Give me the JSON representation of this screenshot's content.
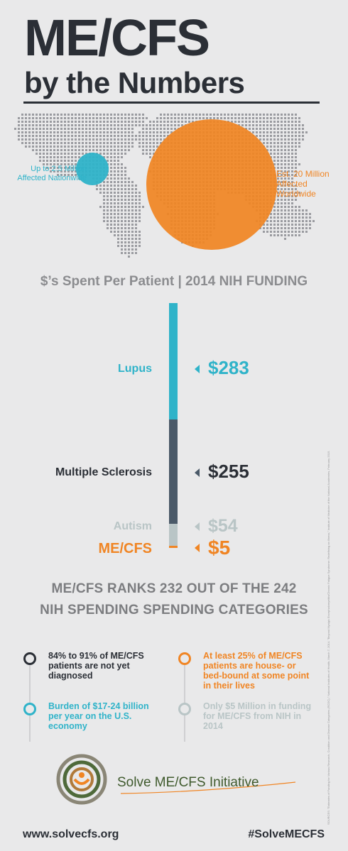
{
  "header": {
    "title": "ME/CFS",
    "subtitle": "by the Numbers"
  },
  "map": {
    "us_label": "Up to 2.5 Million Affected Nationwide",
    "world_label": "Est. 20 Million Affected Worldwide",
    "colors": {
      "us": "#2fb3c9",
      "world": "#f08524",
      "dots": "#9a9ba0"
    }
  },
  "funding": {
    "title": "$’s Spent Per Patient | 2014 NIH FUNDING"
  },
  "chart_data": {
    "type": "bar",
    "title": "$’s Spent Per Patient | 2014 NIH FUNDING",
    "categories": [
      "Lupus",
      "Multiple Sclerosis",
      "Autism",
      "ME/CFS"
    ],
    "values": [
      283,
      255,
      54,
      5
    ],
    "value_labels": [
      "$283",
      "$255",
      "$54",
      "$5"
    ],
    "colors": [
      "#2fb3c9",
      "#4a5968",
      "#b9c5c6",
      "#f08524"
    ],
    "orientation": "stacked vertical column"
  },
  "ranks": {
    "line1": "ME/CFS RANKS 232 OUT OF THE 242",
    "line2": "NIH SPENDING SPENDING CATEGORIES"
  },
  "facts": [
    {
      "text": "84% to 91% of ME/CFS patients are not yet diagnosed",
      "color": "#2b2f36"
    },
    {
      "text": "At least 25% of ME/CFS patients are house- or bed-bound at some point in their lives",
      "color": "#f08524"
    },
    {
      "text": "Burden of $17-24 billion per year on the U.S. economy",
      "color": "#2fb3c9"
    },
    {
      "text": "Only $5 Million in funding for ME/CFS from NIH in 2014",
      "color": "#b9c5c6"
    }
  ],
  "logo": {
    "text": "Solve ME/CFS Initiative"
  },
  "footer": {
    "website": "www.solvecfs.org",
    "hashtag": "#SolveMECFS"
  },
  "sources": "SOURCES: \"Estimates of Funding for Various Research, Condition and Disease Categories (RCDC),\" National Institutes of Health, March 7, 2014. \"Beyond Myalgic Encephalomyelitis/Chronic Fatigue Syndrome: Redefining an Illness,\" Institute of Medicine of the National Academies, February 2015."
}
